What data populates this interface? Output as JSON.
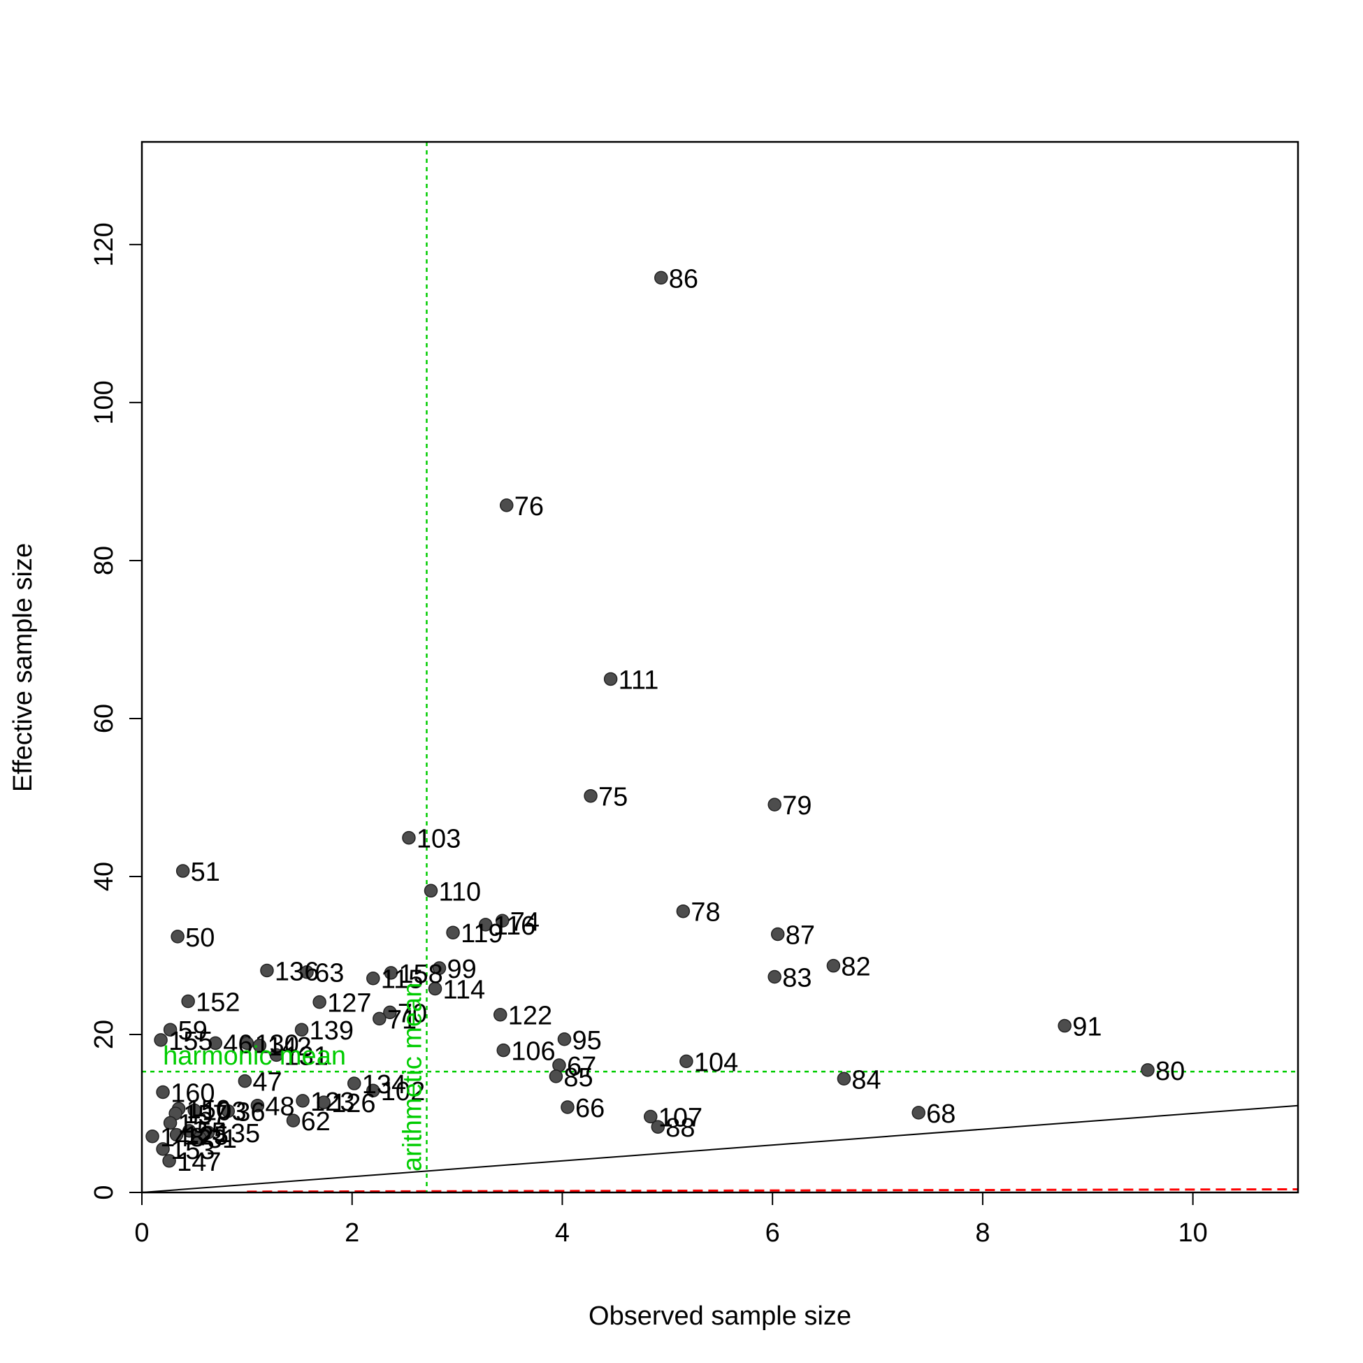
{
  "chart_data": {
    "type": "scatter",
    "xlabel": "Observed sample size",
    "ylabel": "Effective sample size",
    "xlim": [
      0,
      11
    ],
    "ylim": [
      0,
      133
    ],
    "x_ticks": [
      0,
      2,
      4,
      6,
      8,
      10
    ],
    "y_ticks": [
      0,
      20,
      40,
      60,
      80,
      100,
      120
    ],
    "grid": false,
    "legend": "none",
    "colors": {
      "points": "#4d4d4d",
      "reference": "#00cc00",
      "baseline": "#ff0000",
      "identity": "#000000"
    },
    "reference_lines": [
      {
        "orientation": "vertical",
        "value": 2.71,
        "label": "arithmetic mean"
      },
      {
        "orientation": "horizontal",
        "value": 15.3,
        "label": "harmonic mean"
      }
    ],
    "identity_line": {
      "x0": 0,
      "y0": 0,
      "slope": 1
    },
    "baseline_line": {
      "x0": 1,
      "y0": 0.1,
      "x1": 11,
      "y1": 0.4
    },
    "points": [
      {
        "label": "86",
        "x": 4.94,
        "y": 115.8
      },
      {
        "label": "76",
        "x": 3.47,
        "y": 87.0
      },
      {
        "label": "111",
        "x": 4.46,
        "y": 65.0
      },
      {
        "label": "75",
        "x": 4.27,
        "y": 50.2
      },
      {
        "label": "79",
        "x": 6.02,
        "y": 49.1
      },
      {
        "label": "103",
        "x": 2.54,
        "y": 44.9
      },
      {
        "label": "51",
        "x": 0.39,
        "y": 40.7
      },
      {
        "label": "110",
        "x": 2.75,
        "y": 38.2
      },
      {
        "label": "78",
        "x": 5.15,
        "y": 35.6
      },
      {
        "label": "74",
        "x": 3.43,
        "y": 34.4
      },
      {
        "label": "116",
        "x": 3.27,
        "y": 33.9
      },
      {
        "label": "119",
        "x": 2.96,
        "y": 32.9
      },
      {
        "label": "87",
        "x": 6.05,
        "y": 32.7
      },
      {
        "label": "50",
        "x": 0.34,
        "y": 32.4
      },
      {
        "label": "82",
        "x": 6.58,
        "y": 28.7
      },
      {
        "label": "99",
        "x": 2.83,
        "y": 28.4
      },
      {
        "label": "136",
        "x": 1.19,
        "y": 28.1
      },
      {
        "label": "63",
        "x": 1.57,
        "y": 27.9
      },
      {
        "label": "158",
        "x": 2.37,
        "y": 27.8
      },
      {
        "label": "83",
        "x": 6.02,
        "y": 27.3
      },
      {
        "label": "115",
        "x": 2.2,
        "y": 27.1
      },
      {
        "label": "114",
        "x": 2.79,
        "y": 25.8
      },
      {
        "label": "152",
        "x": 0.44,
        "y": 24.2
      },
      {
        "label": "127",
        "x": 1.69,
        "y": 24.1
      },
      {
        "label": "70",
        "x": 2.36,
        "y": 22.8
      },
      {
        "label": "122",
        "x": 3.41,
        "y": 22.5
      },
      {
        "label": "71",
        "x": 2.26,
        "y": 22.0
      },
      {
        "label": "91",
        "x": 8.78,
        "y": 21.1
      },
      {
        "label": "59",
        "x": 0.27,
        "y": 20.6
      },
      {
        "label": "139",
        "x": 1.52,
        "y": 20.6
      },
      {
        "label": "95",
        "x": 4.02,
        "y": 19.4
      },
      {
        "label": "155",
        "x": 0.18,
        "y": 19.3
      },
      {
        "label": "46",
        "x": 0.7,
        "y": 18.9
      },
      {
        "label": "130",
        "x": 1.0,
        "y": 18.9
      },
      {
        "label": "142",
        "x": 1.12,
        "y": 18.6
      },
      {
        "label": "106",
        "x": 3.44,
        "y": 18.0
      },
      {
        "label": "131",
        "x": 1.28,
        "y": 17.4
      },
      {
        "label": "104",
        "x": 5.18,
        "y": 16.6
      },
      {
        "label": "67",
        "x": 3.97,
        "y": 16.1
      },
      {
        "label": "80",
        "x": 9.57,
        "y": 15.5
      },
      {
        "label": "85",
        "x": 3.94,
        "y": 14.7
      },
      {
        "label": "84",
        "x": 6.68,
        "y": 14.4
      },
      {
        "label": "47",
        "x": 0.98,
        "y": 14.1
      },
      {
        "label": "134",
        "x": 2.02,
        "y": 13.8
      },
      {
        "label": "102",
        "x": 2.2,
        "y": 12.9
      },
      {
        "label": "160",
        "x": 0.2,
        "y": 12.7
      },
      {
        "label": "123",
        "x": 1.53,
        "y": 11.6
      },
      {
        "label": "126",
        "x": 1.73,
        "y": 11.4
      },
      {
        "label": "48",
        "x": 1.1,
        "y": 11.0
      },
      {
        "label": "66",
        "x": 4.05,
        "y": 10.8
      },
      {
        "label": "150",
        "x": 0.35,
        "y": 10.6
      },
      {
        "label": "103",
        "x": 0.5,
        "y": 10.4
      },
      {
        "label": "36",
        "x": 0.82,
        "y": 10.3
      },
      {
        "label": "68",
        "x": 7.39,
        "y": 10.1
      },
      {
        "label": "157",
        "x": 0.32,
        "y": 10.0
      },
      {
        "label": "107",
        "x": 4.84,
        "y": 9.6
      },
      {
        "label": "62",
        "x": 1.44,
        "y": 9.1
      },
      {
        "label": "15",
        "x": 0.27,
        "y": 8.8
      },
      {
        "label": "88",
        "x": 4.91,
        "y": 8.3
      },
      {
        "label": "55",
        "x": 0.45,
        "y": 7.8
      },
      {
        "label": "135",
        "x": 0.63,
        "y": 7.6
      },
      {
        "label": "148",
        "x": 0.1,
        "y": 7.1
      },
      {
        "label": "125",
        "x": 0.33,
        "y": 7.3
      },
      {
        "label": "31",
        "x": 0.55,
        "y": 6.9
      },
      {
        "label": "153",
        "x": 0.2,
        "y": 5.5
      },
      {
        "label": "147",
        "x": 0.26,
        "y": 4.0
      }
    ]
  }
}
